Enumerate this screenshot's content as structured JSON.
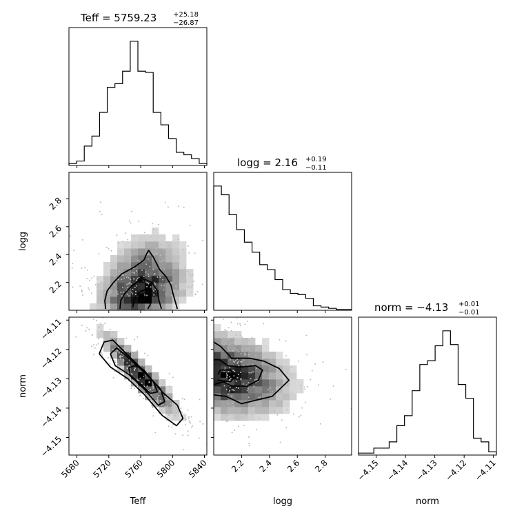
{
  "chart_data": {
    "type": "corner",
    "parameters": [
      {
        "name": "Teff",
        "label": "Teff",
        "title": "Teff = 5759.23",
        "err_plus": "+25.18",
        "err_minus": "−26.87",
        "range": [
          5670,
          5843
        ],
        "ticks": [
          5680,
          5720,
          5760,
          5800,
          5840
        ],
        "tick_labels": [
          "5680",
          "5720",
          "5760",
          "5800",
          "5840"
        ]
      },
      {
        "name": "logg",
        "label": "logg",
        "title": "logg = 2.16",
        "err_plus": "+0.19",
        "err_minus": "−0.11",
        "range": [
          2.0,
          2.99
        ],
        "ticks": [
          2.2,
          2.4,
          2.6,
          2.8
        ],
        "tick_labels": [
          "2.2",
          "2.4",
          "2.6",
          "2.8"
        ]
      },
      {
        "name": "norm",
        "label": "norm",
        "title": "norm = −4.13",
        "err_plus": "+0.01",
        "err_minus": "−0.01",
        "range": [
          -4.156,
          -4.109
        ],
        "ticks": [
          -4.15,
          -4.14,
          -4.13,
          -4.12,
          -4.11
        ],
        "tick_labels": [
          "−4.15",
          "−4.14",
          "−4.13",
          "−4.12",
          "−4.11"
        ]
      }
    ],
    "histograms": {
      "Teff": [
        0.01,
        0.03,
        0.15,
        0.23,
        0.42,
        0.62,
        0.65,
        0.75,
        0.99,
        0.75,
        0.74,
        0.42,
        0.32,
        0.21,
        0.1,
        0.08,
        0.05,
        0.01
      ],
      "logg": [
        0.99,
        0.92,
        0.76,
        0.64,
        0.54,
        0.46,
        0.36,
        0.32,
        0.24,
        0.16,
        0.13,
        0.12,
        0.09,
        0.03,
        0.02,
        0.01,
        0.0,
        0.0
      ],
      "norm": [
        0.01,
        0.01,
        0.05,
        0.05,
        0.1,
        0.23,
        0.31,
        0.51,
        0.72,
        0.75,
        0.87,
        0.99,
        0.88,
        0.56,
        0.45,
        0.13,
        0.1,
        0.02
      ]
    },
    "pairs": [
      {
        "x": "Teff",
        "y": "logg",
        "peak": [
          5761,
          2.1
        ],
        "contours": [
          [
            [
              5716,
              2.01
            ],
            [
              5715,
              2.07
            ],
            [
              5718,
              2.14
            ],
            [
              5726,
              2.2
            ],
            [
              5736,
              2.26
            ],
            [
              5752,
              2.31
            ],
            [
              5764,
              2.36
            ],
            [
              5767,
              2.4
            ],
            [
              5770,
              2.43
            ],
            [
              5776,
              2.38
            ],
            [
              5784,
              2.29
            ],
            [
              5792,
              2.24
            ],
            [
              5798,
              2.18
            ],
            [
              5801,
              2.11
            ],
            [
              5804,
              2.05
            ],
            [
              5806,
              2.01
            ]
          ],
          [
            [
              5734,
              2.01
            ],
            [
              5735,
              2.07
            ],
            [
              5740,
              2.12
            ],
            [
              5748,
              2.17
            ],
            [
              5757,
              2.21
            ],
            [
              5766,
              2.22
            ],
            [
              5774,
              2.2
            ],
            [
              5781,
              2.14
            ],
            [
              5783,
              2.07
            ],
            [
              5786,
              2.01
            ]
          ],
          [
            [
              5750,
              2.02
            ],
            [
              5752,
              2.08
            ],
            [
              5758,
              2.13
            ],
            [
              5766,
              2.15
            ],
            [
              5772,
              2.11
            ],
            [
              5772,
              2.04
            ],
            [
              5769,
              2.01
            ]
          ]
        ]
      },
      {
        "x": "Teff",
        "y": "norm",
        "peak": [
          5760,
          -4.1287
        ],
        "contours": [
          [
            [
              5708,
              -4.1215
            ],
            [
              5714,
              -4.1175
            ],
            [
              5725,
              -4.1168
            ],
            [
              5742,
              -4.1215
            ],
            [
              5765,
              -4.1275
            ],
            [
              5787,
              -4.1345
            ],
            [
              5806,
              -4.139
            ],
            [
              5813,
              -4.1435
            ],
            [
              5805,
              -4.146
            ],
            [
              5787,
              -4.1425
            ],
            [
              5765,
              -4.1355
            ],
            [
              5744,
              -4.13
            ],
            [
              5722,
              -4.126
            ],
            [
              5708,
              -4.1215
            ]
          ],
          [
            [
              5722,
              -4.1215
            ],
            [
              5730,
              -4.1195
            ],
            [
              5746,
              -4.1232
            ],
            [
              5766,
              -4.1282
            ],
            [
              5785,
              -4.1335
            ],
            [
              5790,
              -4.1378
            ],
            [
              5782,
              -4.139
            ],
            [
              5766,
              -4.134
            ],
            [
              5745,
              -4.1285
            ],
            [
              5728,
              -4.1255
            ],
            [
              5722,
              -4.1215
            ]
          ],
          [
            [
              5745,
              -4.1262
            ],
            [
              5753,
              -4.1255
            ],
            [
              5764,
              -4.127
            ],
            [
              5776,
              -4.131
            ],
            [
              5781,
              -4.1345
            ],
            [
              5772,
              -4.135
            ],
            [
              5759,
              -4.1316
            ],
            [
              5747,
              -4.1288
            ],
            [
              5745,
              -4.1262
            ]
          ]
        ]
      },
      {
        "x": "logg",
        "y": "norm",
        "peak": [
          2.07,
          -4.1287
        ],
        "contours": [
          [
            [
              2.0,
              -4.1355
            ],
            [
              2.09,
              -4.136
            ],
            [
              2.2,
              -4.1385
            ],
            [
              2.33,
              -4.137
            ],
            [
              2.42,
              -4.136
            ],
            [
              2.54,
              -4.1305
            ],
            [
              2.47,
              -4.1265
            ],
            [
              2.36,
              -4.124
            ],
            [
              2.26,
              -4.123
            ],
            [
              2.13,
              -4.123
            ],
            [
              2.05,
              -4.119
            ],
            [
              2.0,
              -4.1175
            ]
          ],
          [
            [
              2.0,
              -4.132
            ],
            [
              2.07,
              -4.131
            ],
            [
              2.13,
              -4.1325
            ],
            [
              2.24,
              -4.1325
            ],
            [
              2.32,
              -4.1305
            ],
            [
              2.35,
              -4.127
            ],
            [
              2.3,
              -4.1255
            ],
            [
              2.19,
              -4.126
            ],
            [
              2.1,
              -4.1255
            ],
            [
              2.04,
              -4.1235
            ],
            [
              2.0,
              -4.1235
            ]
          ],
          [
            [
              2.03,
              -4.1305
            ],
            [
              2.12,
              -4.131
            ],
            [
              2.16,
              -4.129
            ],
            [
              2.12,
              -4.127
            ],
            [
              2.05,
              -4.127
            ],
            [
              2.03,
              -4.1285
            ]
          ]
        ]
      }
    ]
  }
}
